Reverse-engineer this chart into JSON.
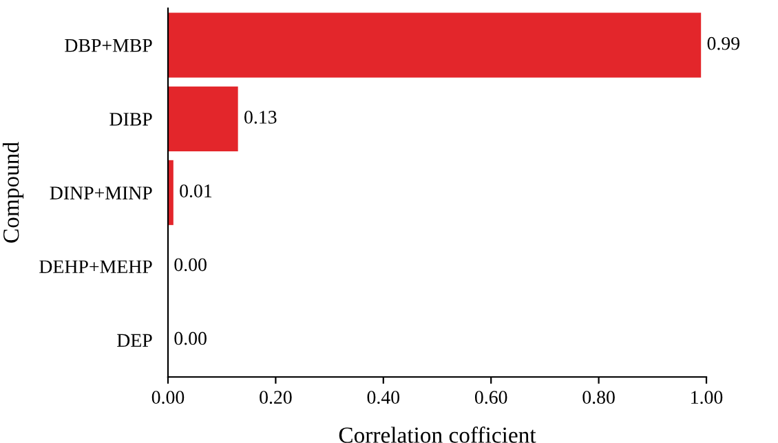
{
  "chart_data": {
    "type": "bar",
    "orientation": "horizontal",
    "xlabel": "Correlation cofficient",
    "ylabel": "Compound",
    "categories": [
      "DBP+MBP",
      "DIBP",
      "DINP+MINP",
      "DEHP+MEHP",
      "DEP"
    ],
    "values": [
      0.99,
      0.13,
      0.01,
      0.0,
      0.0
    ],
    "value_labels": [
      "0.99",
      "0.13",
      "0.01",
      "0.00",
      "0.00"
    ],
    "color": "#e3262b",
    "xlim": [
      0,
      1
    ],
    "xticks": [
      {
        "value": 0,
        "label": "0.00"
      },
      {
        "value": 0.2,
        "label": "0.20"
      },
      {
        "value": 0.4,
        "label": "0.40"
      },
      {
        "value": 0.6,
        "label": "0.60"
      },
      {
        "value": 0.8,
        "label": "0.80"
      },
      {
        "value": 1.0,
        "label": "1.00"
      }
    ],
    "grid": false,
    "legend": false
  }
}
